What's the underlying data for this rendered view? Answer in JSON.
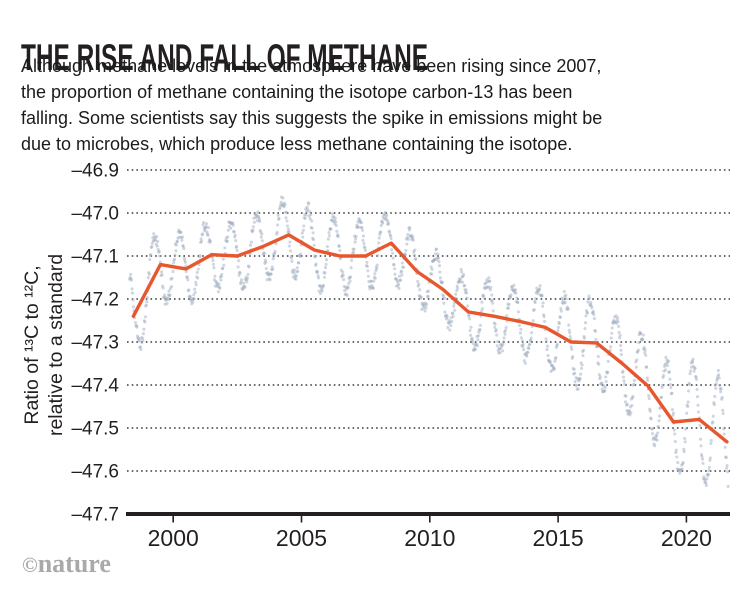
{
  "header": {
    "title": "THE RISE AND FALL OF METHANE",
    "description_lines": [
      "Although methane levels in the atmosphere have been rising since 2007,",
      "the proportion of methane containing the isotope carbon-13 has been",
      "falling. Some scientists say this suggests the spike in emissions might be",
      "due to microbes, which produce less methane containing the isotope."
    ]
  },
  "footer": {
    "logo_copyright": "©",
    "logo_name": "nature"
  },
  "chart_data": {
    "type": "scatter",
    "title": "THE RISE AND FALL OF METHANE",
    "xlabel": "",
    "ylabel_lines": [
      "Ratio of ¹³C to ¹²C,",
      "relative to a standard"
    ],
    "grid": "dotted horizontal gridlines",
    "legend": "none",
    "xlim": [
      1998.2,
      2021.7
    ],
    "ylim": [
      -47.7,
      -46.9
    ],
    "yticks": [
      {
        "label": "–46.9",
        "value": -46.9
      },
      {
        "label": "–47.0",
        "value": -47.0
      },
      {
        "label": "–47.1",
        "value": -47.1
      },
      {
        "label": "–47.2",
        "value": -47.2
      },
      {
        "label": "–47.3",
        "value": -47.3
      },
      {
        "label": "–47.4",
        "value": -47.4
      },
      {
        "label": "–47.5",
        "value": -47.5
      },
      {
        "label": "–47.6",
        "value": -47.6
      },
      {
        "label": "–47.7",
        "value": -47.7
      }
    ],
    "xticks": [
      {
        "label": "2000",
        "value": 2000
      },
      {
        "label": "2005",
        "value": 2005
      },
      {
        "label": "2010",
        "value": 2010
      },
      {
        "label": "2015",
        "value": 2015
      },
      {
        "label": "2020",
        "value": 2020
      }
    ],
    "colors": {
      "trend": "#e7562c",
      "dots": "#9fadbf",
      "axis": "#231f20",
      "grid": "#3c3c3c",
      "text": "#231f20"
    },
    "trend_series": {
      "name": "annual-mean trend line",
      "points": [
        [
          1998.45,
          -47.24
        ],
        [
          1999.5,
          -47.12
        ],
        [
          2000.5,
          -47.13
        ],
        [
          2001.5,
          -47.097
        ],
        [
          2002.5,
          -47.1
        ],
        [
          2003.5,
          -47.078
        ],
        [
          2004.5,
          -47.051
        ],
        [
          2005.5,
          -47.086
        ],
        [
          2006.5,
          -47.1
        ],
        [
          2007.5,
          -47.1
        ],
        [
          2008.5,
          -47.07
        ],
        [
          2009.5,
          -47.136
        ],
        [
          2010.5,
          -47.177
        ],
        [
          2011.5,
          -47.23
        ],
        [
          2012.5,
          -47.24
        ],
        [
          2013.5,
          -47.252
        ],
        [
          2014.5,
          -47.266
        ],
        [
          2015.5,
          -47.3
        ],
        [
          2016.5,
          -47.302
        ],
        [
          2017.5,
          -47.35
        ],
        [
          2018.5,
          -47.402
        ],
        [
          2019.5,
          -47.486
        ],
        [
          2020.5,
          -47.48
        ],
        [
          2021.58,
          -47.532
        ]
      ]
    },
    "scatter_series": {
      "name": "individual measurements (seasonal cycle around trend)",
      "t_start": 1998.3,
      "t_end": 2021.62,
      "points_per_year": 52,
      "phase_peak": 0.25,
      "jitter": 0.014,
      "dot_radius": 1.55,
      "dot_opacity": 0.5,
      "amplitude_points": [
        [
          1998.3,
          0.105
        ],
        [
          2000,
          0.082
        ],
        [
          2002,
          0.075
        ],
        [
          2004,
          0.082
        ],
        [
          2005,
          0.09
        ],
        [
          2007,
          0.08
        ],
        [
          2009,
          0.075
        ],
        [
          2011,
          0.07
        ],
        [
          2012,
          0.08
        ],
        [
          2013,
          0.075
        ],
        [
          2014,
          0.085
        ],
        [
          2015,
          0.095
        ],
        [
          2016,
          0.1
        ],
        [
          2017,
          0.095
        ],
        [
          2018,
          0.1
        ],
        [
          2019,
          0.115
        ],
        [
          2020,
          0.13
        ],
        [
          2021,
          0.14
        ],
        [
          2021.62,
          0.13
        ]
      ]
    }
  }
}
